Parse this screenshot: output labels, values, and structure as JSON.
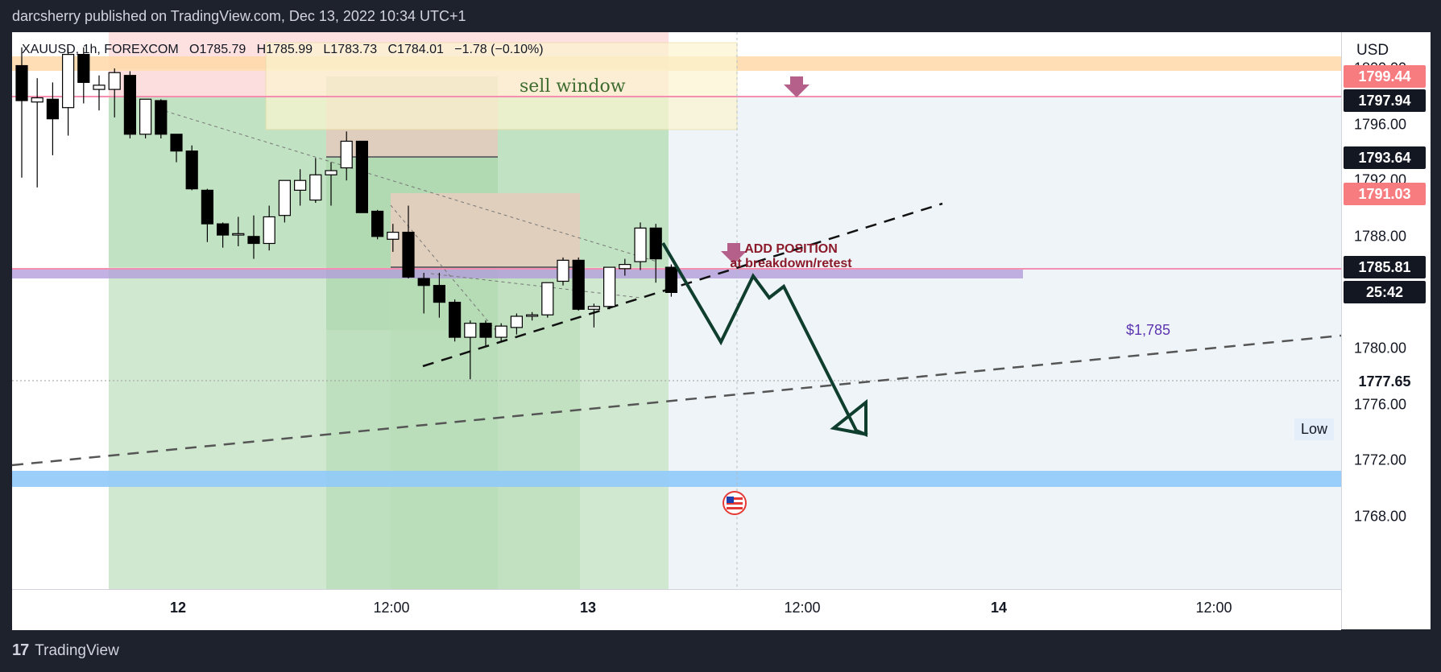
{
  "header": {
    "publisher": "darcsherry published on TradingView.com, Dec 13, 2022 10:34 UTC+1"
  },
  "legend": {
    "symbol": "XAUUSD, 1h, FOREXCOM",
    "open": "O1785.79",
    "high": "H1785.99",
    "low": "L1783.73",
    "close": "C1784.01",
    "change": "−1.78 (−0.10%)"
  },
  "annotations": {
    "sell_window": "sell window",
    "add_position_title": "ADD POSITION",
    "add_position_sub": "at breakdown/retest",
    "level_label": "$1,785",
    "low_label": "Low"
  },
  "yaxis": {
    "currency": "USD",
    "ticks": [
      "1800.00",
      "1796.00",
      "1792.00",
      "1788.00",
      "1784.00",
      "1780.00",
      "1776.00",
      "1772.00",
      "1768.00"
    ],
    "tags": [
      {
        "text": "1799.44",
        "bg": "#f77c80",
        "fg": "#ffffff",
        "value": 1799.44
      },
      {
        "text": "1797.94",
        "bg": "#131722",
        "fg": "#ffffff",
        "value": 1797.94
      },
      {
        "text": "1793.64",
        "bg": "#131722",
        "fg": "#ffffff",
        "value": 1793.64
      },
      {
        "text": "1791.03",
        "bg": "#f77c80",
        "fg": "#ffffff",
        "value": 1791.03
      },
      {
        "text": "1785.81",
        "bg": "#131722",
        "fg": "#ffffff",
        "value": 1785.81
      },
      {
        "text": "25:42",
        "bg": "#131722",
        "fg": "#ffffff",
        "value": 1784.01
      },
      {
        "text": "1777.65",
        "bg": "#ffffff",
        "fg": "#131722",
        "value": 1777.65
      }
    ]
  },
  "xaxis": {
    "labels": [
      {
        "text": "12",
        "bold": true
      },
      {
        "text": "12:00",
        "bold": false
      },
      {
        "text": "13",
        "bold": true
      },
      {
        "text": "12:00",
        "bold": false
      },
      {
        "text": "14",
        "bold": true
      },
      {
        "text": "12:00",
        "bold": false
      }
    ]
  },
  "footer": {
    "brand": "TradingView"
  },
  "colors": {
    "bg": "#1e222d",
    "green_zone": "#a5d6a7",
    "purple_zone": "#b39ddb",
    "blue_zone": "#90caf9",
    "projection": "#0f3d2e",
    "pink_line": "#f48fb1"
  },
  "chart_data": {
    "type": "candlestick",
    "symbol": "XAUUSD",
    "timeframe": "1h",
    "ylim": [
      1767.5,
      1801.5
    ],
    "candles": [
      {
        "o": 1800.2,
        "h": 1801.5,
        "l": 1792.2,
        "c": 1797.7
      },
      {
        "o": 1797.6,
        "h": 1799.3,
        "l": 1791.5,
        "c": 1797.9
      },
      {
        "o": 1797.8,
        "h": 1799.0,
        "l": 1793.8,
        "c": 1796.4
      },
      {
        "o": 1797.2,
        "h": 1801.5,
        "l": 1795.2,
        "c": 1801.0
      },
      {
        "o": 1801.0,
        "h": 1801.5,
        "l": 1797.5,
        "c": 1799.0
      },
      {
        "o": 1798.5,
        "h": 1799.5,
        "l": 1797.0,
        "c": 1798.8
      },
      {
        "o": 1798.5,
        "h": 1800.0,
        "l": 1796.5,
        "c": 1799.7
      },
      {
        "o": 1799.5,
        "h": 1799.8,
        "l": 1795.0,
        "c": 1795.3
      },
      {
        "o": 1795.3,
        "h": 1797.5,
        "l": 1795.0,
        "c": 1797.8
      },
      {
        "o": 1797.7,
        "h": 1797.8,
        "l": 1795.0,
        "c": 1795.3
      },
      {
        "o": 1795.3,
        "h": 1795.3,
        "l": 1793.3,
        "c": 1794.1
      },
      {
        "o": 1794.1,
        "h": 1794.5,
        "l": 1791.3,
        "c": 1791.4
      },
      {
        "o": 1791.3,
        "h": 1791.4,
        "l": 1787.6,
        "c": 1788.9
      },
      {
        "o": 1788.9,
        "h": 1789.0,
        "l": 1787.2,
        "c": 1788.1
      },
      {
        "o": 1788.1,
        "h": 1789.4,
        "l": 1787.3,
        "c": 1788.2
      },
      {
        "o": 1788.0,
        "h": 1789.5,
        "l": 1786.4,
        "c": 1787.5
      },
      {
        "o": 1787.5,
        "h": 1790.2,
        "l": 1787.0,
        "c": 1789.4
      },
      {
        "o": 1789.5,
        "h": 1792.0,
        "l": 1789.0,
        "c": 1792.0
      },
      {
        "o": 1791.3,
        "h": 1792.8,
        "l": 1790.2,
        "c": 1792.0
      },
      {
        "o": 1790.6,
        "h": 1793.6,
        "l": 1790.4,
        "c": 1792.4
      },
      {
        "o": 1792.4,
        "h": 1793.3,
        "l": 1790.2,
        "c": 1792.7
      },
      {
        "o": 1792.9,
        "h": 1795.5,
        "l": 1792.0,
        "c": 1794.8
      },
      {
        "o": 1794.8,
        "h": 1794.8,
        "l": 1789.7,
        "c": 1789.7
      },
      {
        "o": 1789.8,
        "h": 1789.9,
        "l": 1787.8,
        "c": 1788.0
      },
      {
        "o": 1787.8,
        "h": 1788.9,
        "l": 1786.9,
        "c": 1788.3
      },
      {
        "o": 1788.3,
        "h": 1790.2,
        "l": 1785.0,
        "c": 1785.1
      },
      {
        "o": 1785.0,
        "h": 1785.4,
        "l": 1782.5,
        "c": 1784.5
      },
      {
        "o": 1784.5,
        "h": 1785.4,
        "l": 1782.2,
        "c": 1783.3
      },
      {
        "o": 1783.3,
        "h": 1783.5,
        "l": 1780.5,
        "c": 1780.8
      },
      {
        "o": 1780.8,
        "h": 1782.0,
        "l": 1777.8,
        "c": 1781.8
      },
      {
        "o": 1781.8,
        "h": 1782.0,
        "l": 1780.2,
        "c": 1780.8
      },
      {
        "o": 1780.8,
        "h": 1781.8,
        "l": 1780.5,
        "c": 1781.6
      },
      {
        "o": 1781.5,
        "h": 1782.5,
        "l": 1781.0,
        "c": 1782.3
      },
      {
        "o": 1782.3,
        "h": 1782.6,
        "l": 1782.0,
        "c": 1782.4
      },
      {
        "o": 1782.4,
        "h": 1784.7,
        "l": 1782.2,
        "c": 1784.7
      },
      {
        "o": 1784.8,
        "h": 1786.5,
        "l": 1784.5,
        "c": 1786.3
      },
      {
        "o": 1786.3,
        "h": 1786.5,
        "l": 1782.7,
        "c": 1782.8
      },
      {
        "o": 1782.8,
        "h": 1783.2,
        "l": 1781.5,
        "c": 1783.0
      },
      {
        "o": 1783.0,
        "h": 1785.8,
        "l": 1782.8,
        "c": 1785.8
      },
      {
        "o": 1785.7,
        "h": 1786.4,
        "l": 1785.2,
        "c": 1786.0
      },
      {
        "o": 1786.2,
        "h": 1789.0,
        "l": 1785.6,
        "c": 1788.6
      },
      {
        "o": 1788.6,
        "h": 1788.9,
        "l": 1784.7,
        "c": 1786.4
      },
      {
        "o": 1785.8,
        "h": 1786.0,
        "l": 1783.7,
        "c": 1784.0
      }
    ]
  }
}
